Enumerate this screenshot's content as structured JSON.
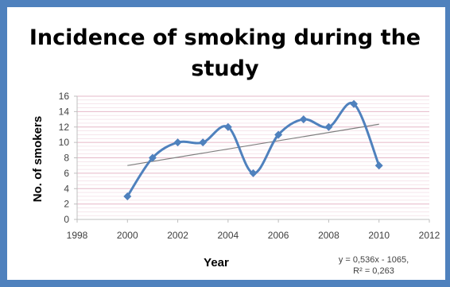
{
  "chart_data": {
    "type": "line",
    "title_line1": "Incidence of smoking during the",
    "title_line2": "study",
    "xlabel": "Year",
    "ylabel": "No. of smokers",
    "xlim": [
      1998,
      2012
    ],
    "ylim": [
      0,
      16
    ],
    "x_ticks": [
      "1998",
      "2000",
      "2002",
      "2004",
      "2006",
      "2008",
      "2010",
      "2012"
    ],
    "y_ticks": [
      "0",
      "2",
      "4",
      "6",
      "8",
      "10",
      "12",
      "14",
      "16"
    ],
    "grid": true,
    "smooth": true,
    "series": [
      {
        "x": [
          2000,
          2001,
          2002,
          2003,
          2004,
          2005,
          2006,
          2007,
          2008,
          2009,
          2010
        ],
        "values": [
          3,
          8,
          10,
          10,
          12,
          6,
          11,
          13,
          12,
          15,
          7
        ],
        "color": "#4f81bd",
        "marker": "diamond"
      }
    ],
    "trendline": {
      "slope": 0.536,
      "intercept": -1065,
      "x_range": [
        2000,
        2010
      ],
      "color": "#7f7f7f",
      "equation_line1": "y = 0,536x - 1065,",
      "equation_line2": "R² = 0,263"
    }
  },
  "colors": {
    "frame": "#4f81bd",
    "gridline": "#e6b8c8",
    "axis": "#bfbfbf"
  }
}
